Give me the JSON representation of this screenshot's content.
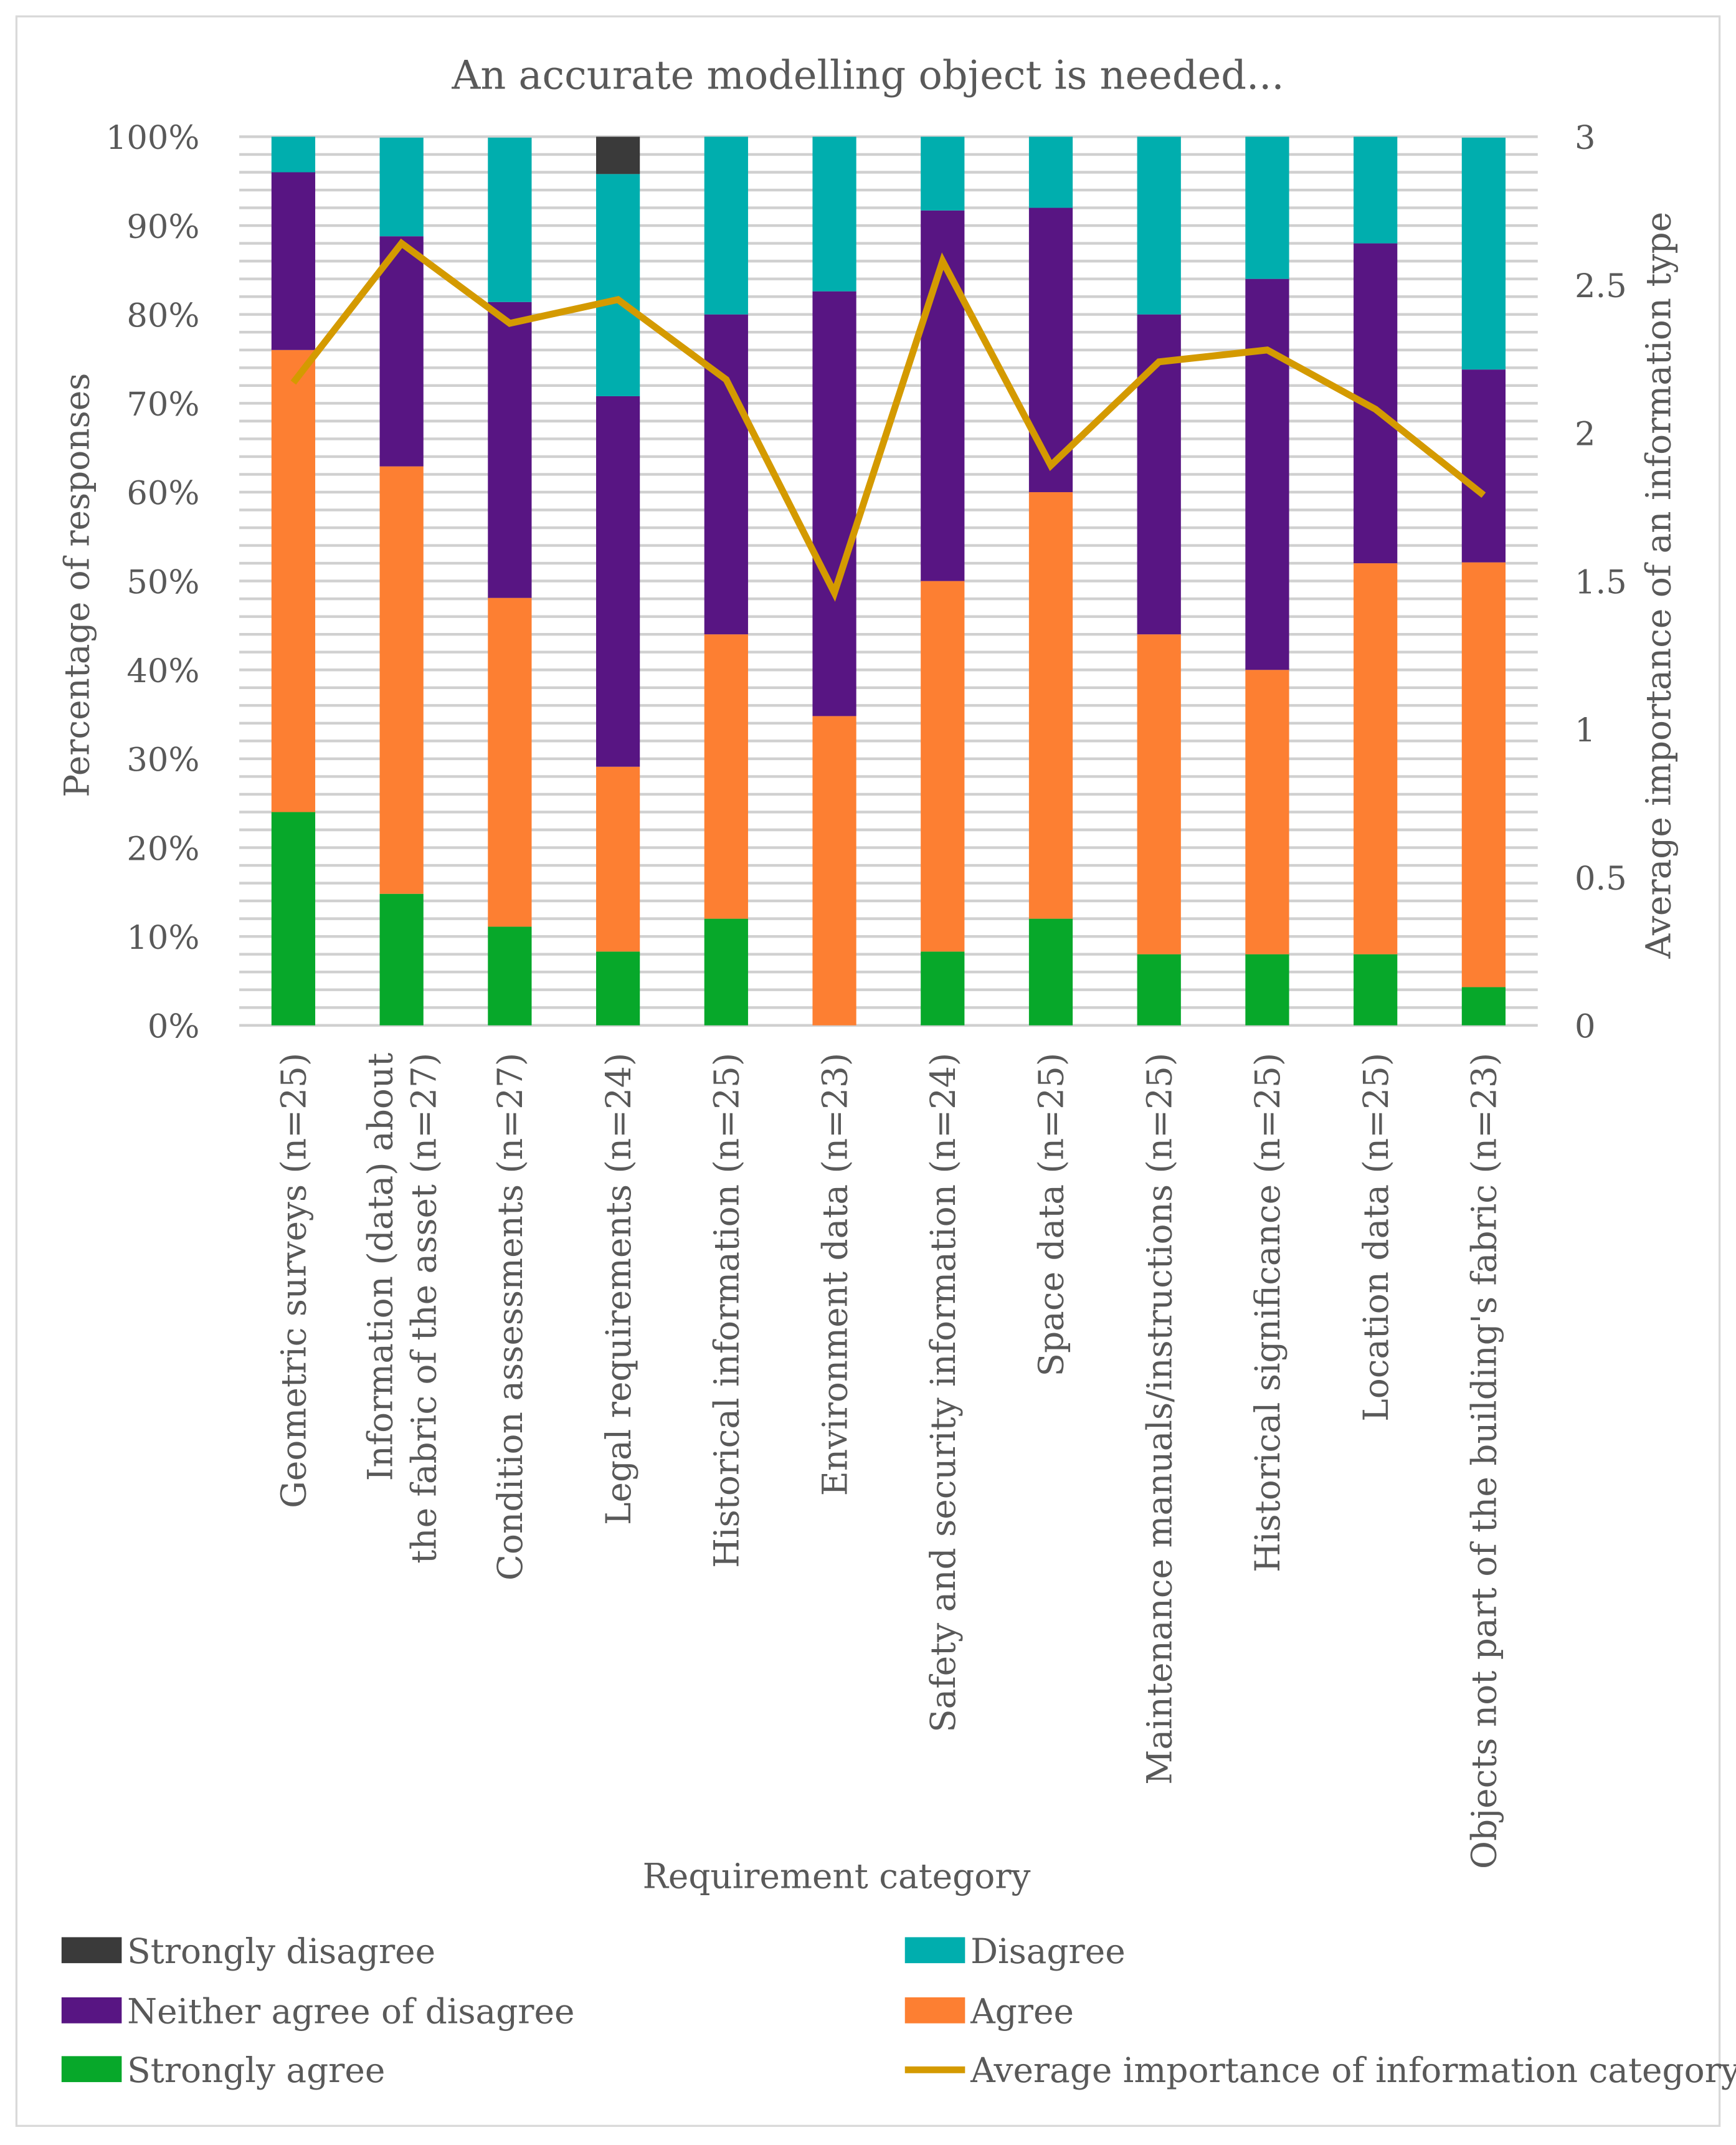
{
  "chart_data": {
    "type": "bar",
    "stacked": true,
    "title": "An accurate modelling object is needed...",
    "xlabel": "Requirement category",
    "ylabel": "Percentage of  responses",
    "y2label": "Average importance of an information type",
    "ylim": [
      0,
      100
    ],
    "y2lim": [
      0,
      3
    ],
    "yticks": [
      "0%",
      "10%",
      "20%",
      "30%",
      "40%",
      "50%",
      "60%",
      "70%",
      "80%",
      "90%",
      "100%"
    ],
    "y2ticks": [
      "0",
      "0.5",
      "1",
      "1.5",
      "2",
      "2.5",
      "3"
    ],
    "grid": true,
    "legend_placement": "bottom",
    "categories": [
      [
        "Geometric surveys (n=25)"
      ],
      [
        "Information (data) about",
        "the fabric of the asset (n=27)"
      ],
      [
        "Condition assessments (n=27)"
      ],
      [
        "Legal requirements (n=24)"
      ],
      [
        "Historical information (n=25)"
      ],
      [
        "Environment data (n=23)"
      ],
      [
        "Safety and security information (n=24)"
      ],
      [
        "Space data (n=25)"
      ],
      [
        "Maintenance manuals/instructions (n=25)"
      ],
      [
        "Historical significance (n=25)"
      ],
      [
        "Location data (n=25)"
      ],
      [
        "Objects not part of the building's fabric (n=23)"
      ]
    ],
    "series": [
      {
        "name": "Strongly agree",
        "color": "#07a82a",
        "values": [
          24,
          14.8,
          11.1,
          8.3,
          12,
          0,
          8.3,
          12,
          8,
          8,
          8,
          4.3
        ]
      },
      {
        "name": "Agree",
        "color": "#fd7f32",
        "values": [
          52,
          48.1,
          37.0,
          20.8,
          32,
          34.8,
          41.7,
          48,
          36,
          32,
          44,
          47.8
        ]
      },
      {
        "name": "Neither agree of disagree",
        "color": "#581583",
        "values": [
          20,
          25.9,
          33.3,
          41.7,
          36,
          47.8,
          41.7,
          32,
          36,
          44,
          36,
          21.7
        ]
      },
      {
        "name": "Disagree",
        "color": "#00aeae",
        "values": [
          4,
          11.1,
          18.5,
          25,
          20,
          17.4,
          8.3,
          8,
          20,
          16,
          12,
          26.1
        ]
      },
      {
        "name": "Strongly disagree",
        "color": "#3a3a3a",
        "values": [
          0,
          0,
          0,
          4.2,
          0,
          0,
          0,
          0,
          0,
          0,
          0,
          0
        ]
      }
    ],
    "line_series": {
      "name": "Average importance of information category",
      "color": "#d49a00",
      "axis": "right",
      "values": [
        2.17,
        2.64,
        2.37,
        2.45,
        2.18,
        1.46,
        2.58,
        1.89,
        2.24,
        2.28,
        2.08,
        1.79
      ]
    },
    "legend": [
      {
        "label": "Strongly disagree",
        "kind": "box",
        "color": "#3a3a3a"
      },
      {
        "label": "Disagree",
        "kind": "box",
        "color": "#00aeae"
      },
      {
        "label": "Neither agree of disagree",
        "kind": "box",
        "color": "#581583"
      },
      {
        "label": "Agree",
        "kind": "box",
        "color": "#fd7f32"
      },
      {
        "label": "Strongly agree",
        "kind": "box",
        "color": "#07a82a"
      },
      {
        "label": "Average importance of information category",
        "kind": "line",
        "color": "#d49a00"
      }
    ]
  }
}
